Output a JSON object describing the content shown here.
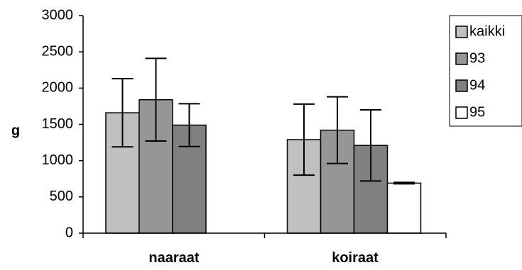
{
  "chart_data": {
    "type": "bar",
    "title": "",
    "xlabel": "",
    "ylabel": "g",
    "ylim": [
      0,
      3000
    ],
    "yticks": [
      0,
      500,
      1000,
      1500,
      2000,
      2500,
      3000
    ],
    "categories": [
      "naaraat",
      "koiraat"
    ],
    "grid": false,
    "legend_position": "right",
    "series": [
      {
        "name": "kaikki",
        "color": "#c0c0c0",
        "values": [
          1660,
          1290
        ],
        "error": [
          470,
          490
        ]
      },
      {
        "name": "93",
        "color": "#969696",
        "values": [
          1840,
          1420
        ],
        "error": [
          570,
          460
        ]
      },
      {
        "name": "94",
        "color": "#808080",
        "values": [
          1490,
          1210
        ],
        "error": [
          295,
          490
        ]
      },
      {
        "name": "95",
        "color": "#ffffff",
        "values": [
          null,
          690
        ],
        "error": [
          null,
          10
        ]
      }
    ]
  }
}
